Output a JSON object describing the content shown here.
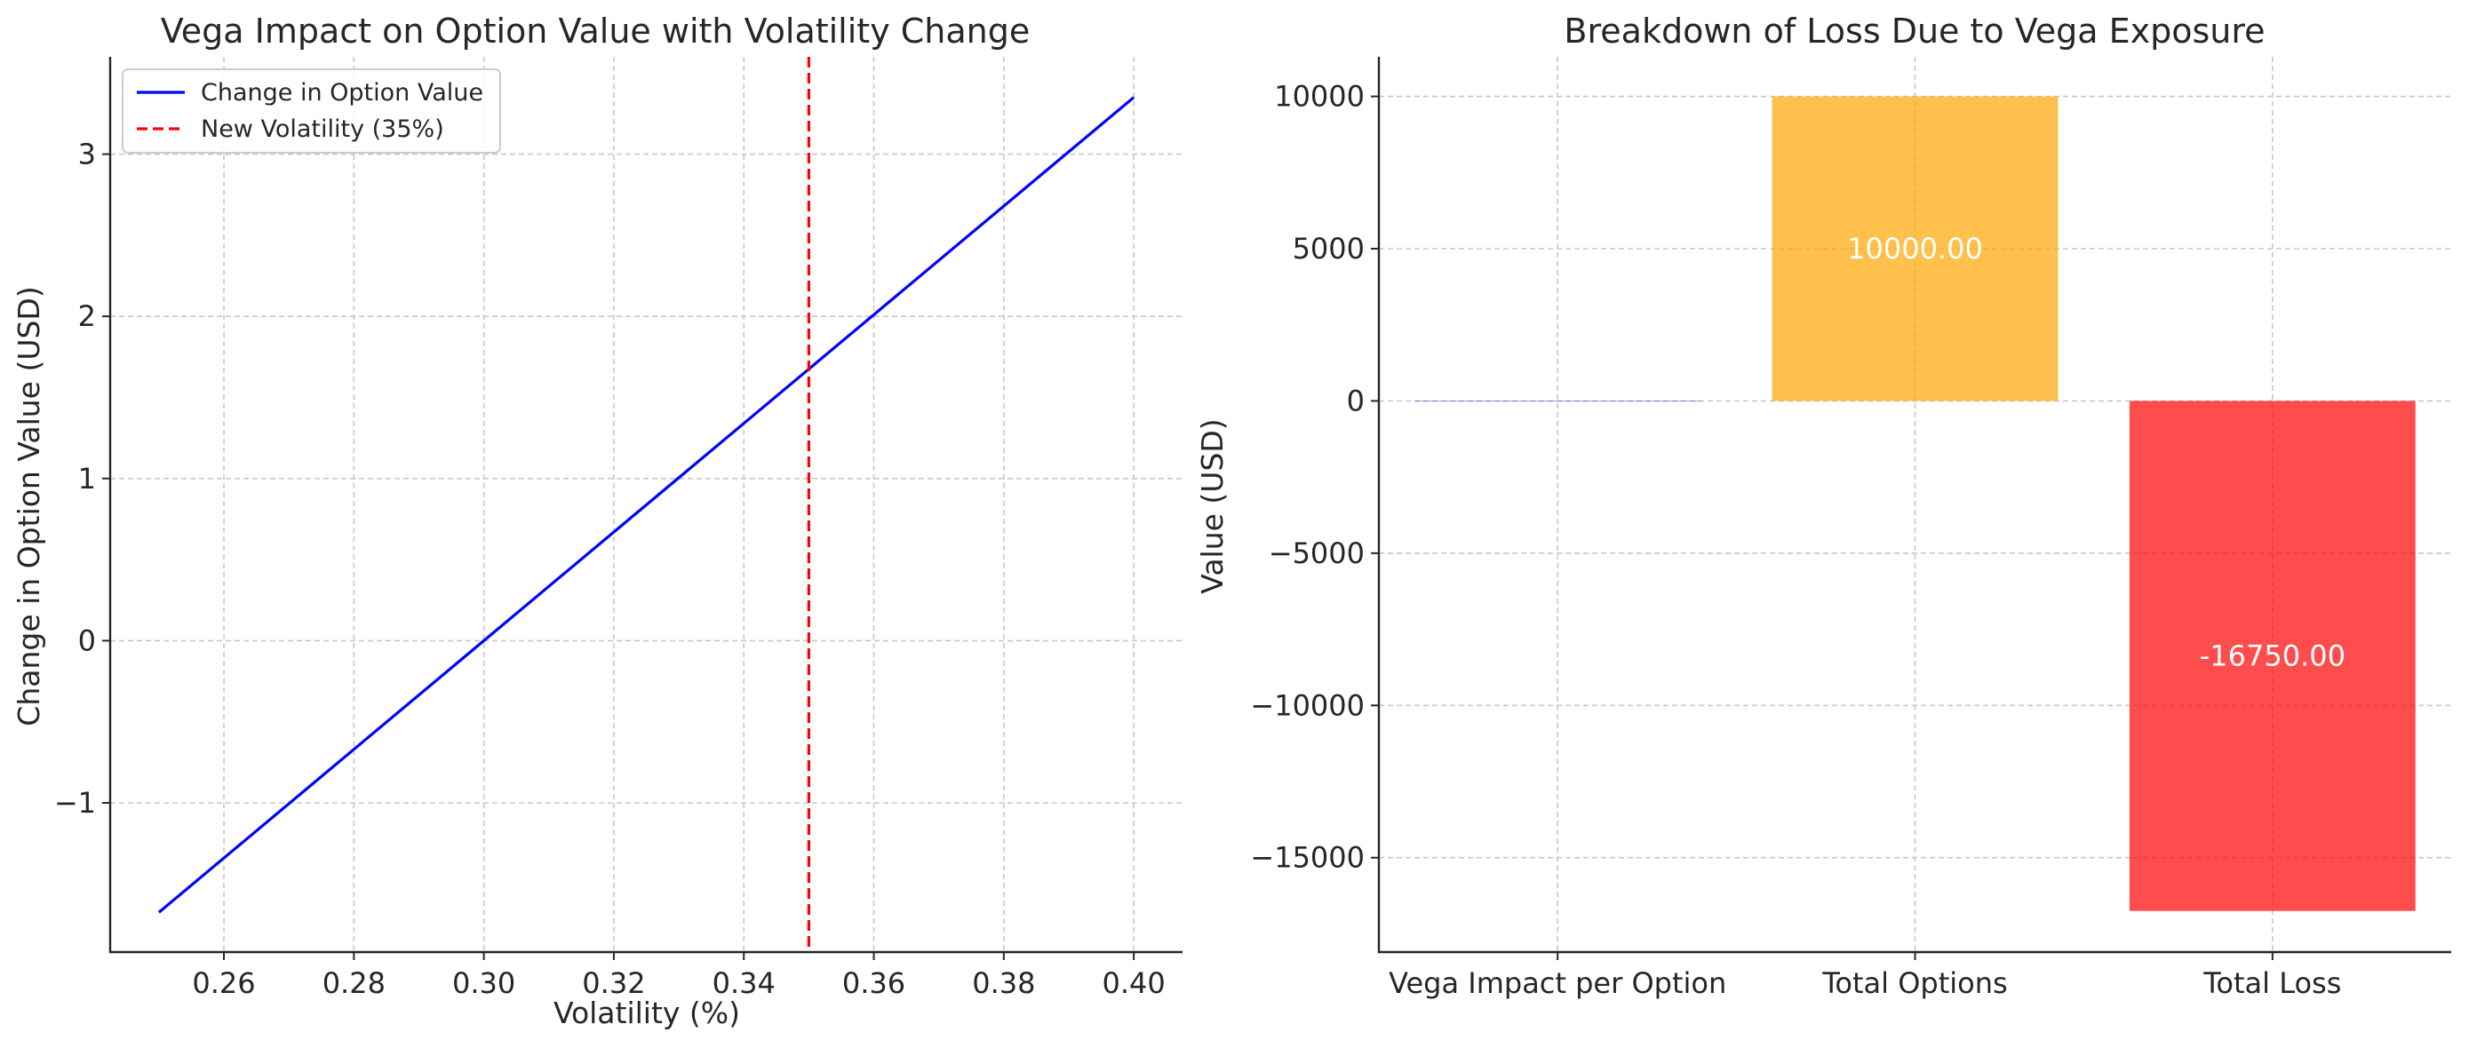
{
  "chart_data": [
    {
      "type": "line",
      "title": "Vega Impact on Option Value with Volatility Change",
      "xlabel": "Volatility (%)",
      "ylabel": "Change in Option Value (USD)",
      "xlim": [
        0.2425,
        0.4075
      ],
      "ylim": [
        -1.92,
        3.6
      ],
      "xticks": [
        0.26,
        0.28,
        0.3,
        0.32,
        0.34,
        0.36,
        0.38,
        0.4
      ],
      "xtick_labels": [
        "0.26",
        "0.28",
        "0.30",
        "0.32",
        "0.34",
        "0.36",
        "0.38",
        "0.40"
      ],
      "yticks": [
        -1,
        0,
        1,
        2,
        3
      ],
      "ytick_labels": [
        "−1",
        "0",
        "1",
        "2",
        "3"
      ],
      "grid": true,
      "legend_position": "top-left",
      "series": [
        {
          "name": "Change in Option Value",
          "color": "#0000ff",
          "style": "solid",
          "x": [
            0.25,
            0.4
          ],
          "y": [
            -1.675,
            3.35
          ]
        }
      ],
      "vlines": [
        {
          "name": "New Volatility (35%)",
          "x": 0.35,
          "color": "#ff0000",
          "style": "dashed"
        }
      ]
    },
    {
      "type": "bar",
      "title": "Breakdown of Loss Due to Vega Exposure",
      "xlabel": "",
      "ylabel": "Value (USD)",
      "ylim": [
        -18100,
        11300
      ],
      "yticks": [
        10000,
        5000,
        0,
        -5000,
        -10000,
        -15000
      ],
      "ytick_labels": [
        "10000",
        "5000",
        "0",
        "−5000",
        "−10000",
        "−15000"
      ],
      "grid": true,
      "categories": [
        "Vega Impact per Option",
        "Total Options",
        "Total Loss"
      ],
      "values": [
        -1.675,
        10000,
        -16750
      ],
      "colors": [
        "#0000ff",
        "#ffa500",
        "#ff0000"
      ],
      "bar_alpha": 0.7,
      "value_labels": [
        "",
        "10000.00",
        "-16750.00"
      ]
    }
  ]
}
